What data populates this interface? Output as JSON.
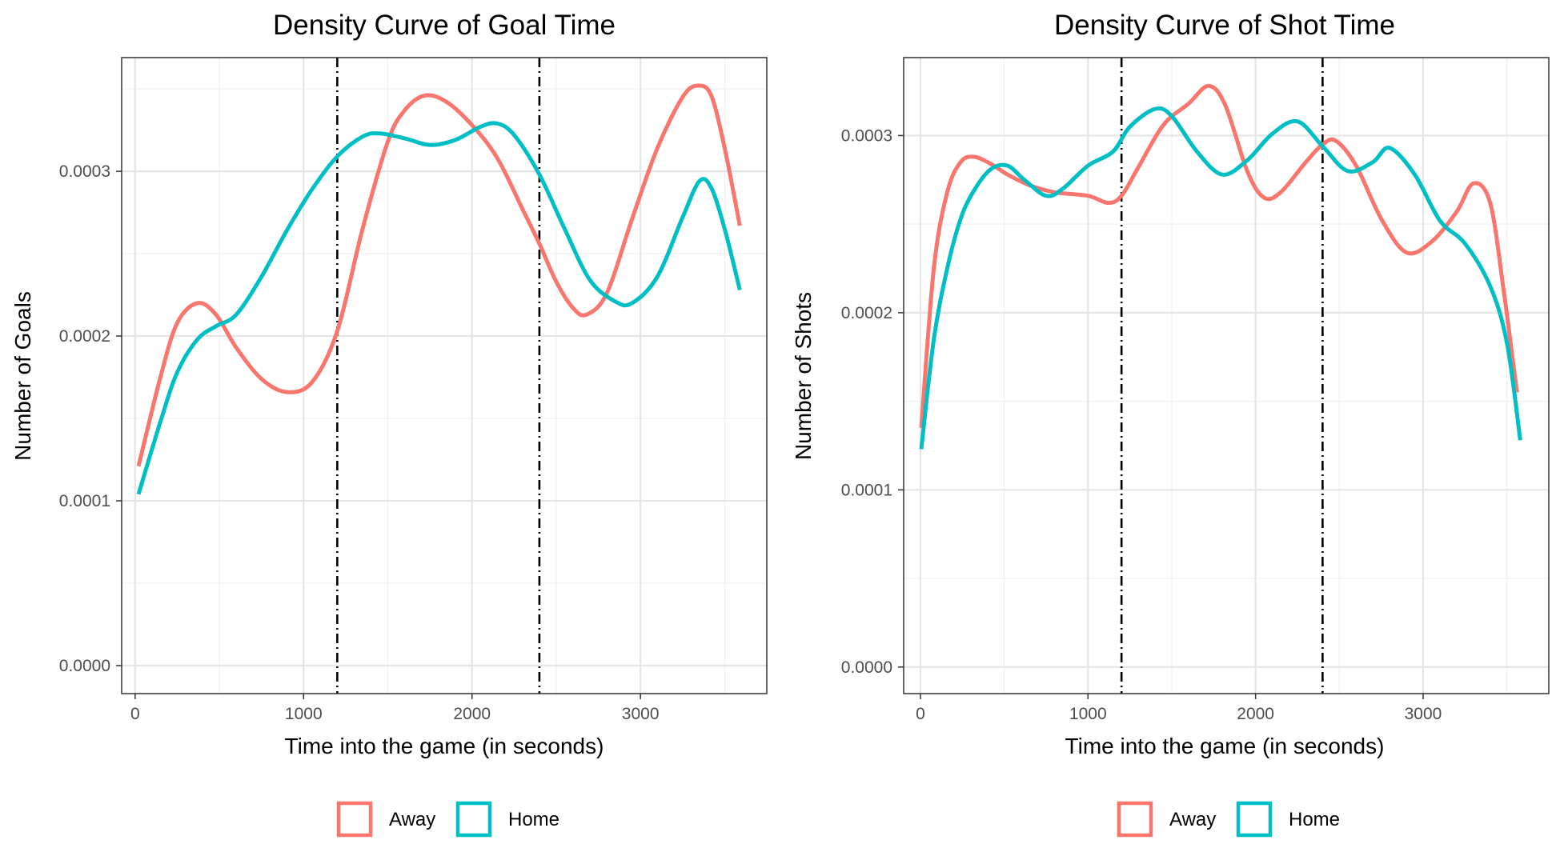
{
  "chart_data": [
    {
      "type": "line",
      "title": "Density Curve of Goal Time",
      "xlabel": "Time into the game (in seconds)",
      "ylabel": "Number of Goals",
      "xlim": [
        -80,
        3750
      ],
      "ylim": [
        -1.7e-05,
        0.000369
      ],
      "x_ticks": [
        0,
        1000,
        2000,
        3000
      ],
      "x_tick_labels": [
        "0",
        "1000",
        "2000",
        "3000"
      ],
      "y_ticks": [
        0,
        0.0001,
        0.0002,
        0.0003
      ],
      "y_tick_labels": [
        "0.0000",
        "0.0001",
        "0.0002",
        "0.0003"
      ],
      "vlines": [
        1200,
        2400
      ],
      "grid": true,
      "legend_position": "bottom",
      "series": [
        {
          "name": "Away",
          "color": "#F8766D",
          "x": [
            20,
            150,
            250,
            370,
            480,
            600,
            750,
            900,
            1050,
            1200,
            1350,
            1500,
            1600,
            1720,
            1850,
            2000,
            2150,
            2300,
            2400,
            2500,
            2600,
            2680,
            2800,
            2950,
            3100,
            3250,
            3340,
            3420,
            3500,
            3590
          ],
          "y": [
            0.000121,
            0.000175,
            0.000208,
            0.00022,
            0.000213,
            0.000193,
            0.000174,
            0.000166,
            0.000172,
            0.000203,
            0.000265,
            0.000318,
            0.000337,
            0.000346,
            0.000342,
            0.000328,
            0.000308,
            0.000277,
            0.000256,
            0.000233,
            0.000217,
            0.000213,
            0.000226,
            0.000271,
            0.000314,
            0.000345,
            0.000352,
            0.000346,
            0.000314,
            0.000267
          ]
        },
        {
          "name": "Home",
          "color": "#00BFC4",
          "x": [
            20,
            150,
            250,
            370,
            480,
            600,
            750,
            900,
            1050,
            1200,
            1350,
            1450,
            1600,
            1750,
            1900,
            2050,
            2150,
            2250,
            2400,
            2550,
            2700,
            2850,
            2950,
            3100,
            3250,
            3350,
            3420,
            3500,
            3590
          ],
          "y": [
            0.000104,
            0.000148,
            0.000178,
            0.000198,
            0.000206,
            0.000213,
            0.000236,
            0.000264,
            0.000289,
            0.000309,
            0.000321,
            0.000323,
            0.00032,
            0.000316,
            0.000319,
            0.000327,
            0.000329,
            0.000322,
            0.000298,
            0.000265,
            0.000234,
            0.000221,
            0.00022,
            0.000236,
            0.000272,
            0.000294,
            0.00029,
            0.000265,
            0.000228
          ]
        }
      ]
    },
    {
      "type": "line",
      "title": "Density Curve of Shot Time",
      "xlabel": "Time into the game (in seconds)",
      "ylabel": "Number of Shots",
      "xlim": [
        -100,
        3750
      ],
      "ylim": [
        -1.5e-05,
        0.000344
      ],
      "x_ticks": [
        0,
        1000,
        2000,
        3000
      ],
      "x_tick_labels": [
        "0",
        "1000",
        "2000",
        "3000"
      ],
      "y_ticks": [
        0,
        0.0001,
        0.0002,
        0.0003
      ],
      "y_tick_labels": [
        "0.0000",
        "0.0001",
        "0.0002",
        "0.0003"
      ],
      "vlines": [
        1200,
        2400
      ],
      "grid": true,
      "legend_position": "bottom",
      "series": [
        {
          "name": "Away",
          "color": "#F8766D",
          "x": [
            5,
            80,
            160,
            240,
            320,
            420,
            520,
            650,
            800,
            1000,
            1120,
            1200,
            1300,
            1450,
            1600,
            1720,
            1820,
            1950,
            2050,
            2150,
            2300,
            2400,
            2480,
            2600,
            2750,
            2900,
            3050,
            3200,
            3300,
            3400,
            3480,
            3560
          ],
          "y": [
            0.000135,
            0.000225,
            0.000268,
            0.000285,
            0.000288,
            0.000284,
            0.000278,
            0.000272,
            0.000268,
            0.000266,
            0.000262,
            0.000266,
            0.000282,
            0.000306,
            0.000318,
            0.000328,
            0.000317,
            0.00028,
            0.000265,
            0.000268,
            0.000285,
            0.000295,
            0.000297,
            0.000283,
            0.000253,
            0.000234,
            0.00024,
            0.000257,
            0.000273,
            0.000262,
            0.000213,
            0.000155
          ]
        },
        {
          "name": "Home",
          "color": "#00BFC4",
          "x": [
            5,
            80,
            160,
            240,
            320,
            420,
            520,
            620,
            750,
            850,
            1000,
            1150,
            1250,
            1400,
            1500,
            1650,
            1800,
            1950,
            2100,
            2250,
            2400,
            2550,
            2700,
            2800,
            2950,
            3100,
            3250,
            3400,
            3500,
            3580
          ],
          "y": [
            0.000123,
            0.000185,
            0.000225,
            0.000253,
            0.000269,
            0.000281,
            0.000283,
            0.000275,
            0.000266,
            0.00027,
            0.000283,
            0.000291,
            0.000305,
            0.000315,
            0.000311,
            0.000291,
            0.000278,
            0.000286,
            0.000301,
            0.000308,
            0.000294,
            0.00028,
            0.000285,
            0.000293,
            0.000278,
            0.000252,
            0.000239,
            0.000215,
            0.000183,
            0.000128
          ]
        }
      ]
    }
  ]
}
